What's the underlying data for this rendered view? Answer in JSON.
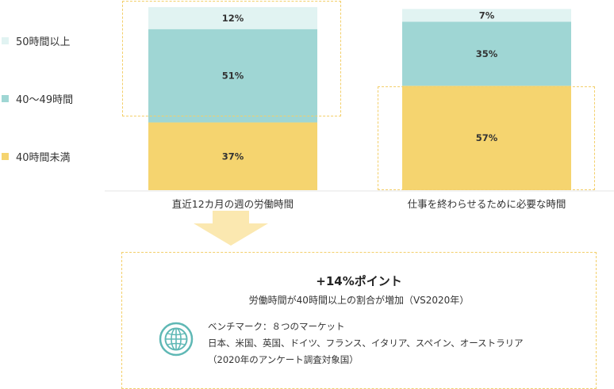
{
  "legend": [
    {
      "label": "50時間以上",
      "color": "#e1f3f2"
    },
    {
      "label": "40〜49時間",
      "color": "#9fd6d4"
    },
    {
      "label": "40時間未満",
      "color": "#f5d46f"
    }
  ],
  "chart_data": {
    "type": "bar",
    "stacked": true,
    "categories": [
      "直近12カ月の週の労働時間",
      "仕事を終わらせるために必要な時間"
    ],
    "series": [
      {
        "name": "40時間未満",
        "values": [
          37,
          57
        ],
        "labels": [
          "37%",
          "57%"
        ],
        "color": "#f5d46f"
      },
      {
        "name": "40〜49時間",
        "values": [
          51,
          35
        ],
        "labels": [
          "51%",
          "35%"
        ],
        "color": "#9fd6d4"
      },
      {
        "name": "50時間以上",
        "values": [
          12,
          7
        ],
        "labels": [
          "12%",
          "7%"
        ],
        "color": "#e1f3f2"
      }
    ],
    "ylim": [
      0,
      100
    ]
  },
  "summary": {
    "headline": "+14%ポイント",
    "subline": "労働時間が40時間以上の割合が増加（VS2020年）",
    "benchmark_title": "ベンチマーク：８つのマーケット",
    "benchmark_countries": "日本、米国、英国、ドイツ、フランス、イタリア、スペイン、オーストラリア",
    "benchmark_note": "（2020年のアンケート調査対象国）",
    "icon": "globe-icon"
  },
  "colors": {
    "dashed_highlight": "#f3cf6a",
    "arrow": "#fbe8b0",
    "globe": "#5fb8b5"
  }
}
